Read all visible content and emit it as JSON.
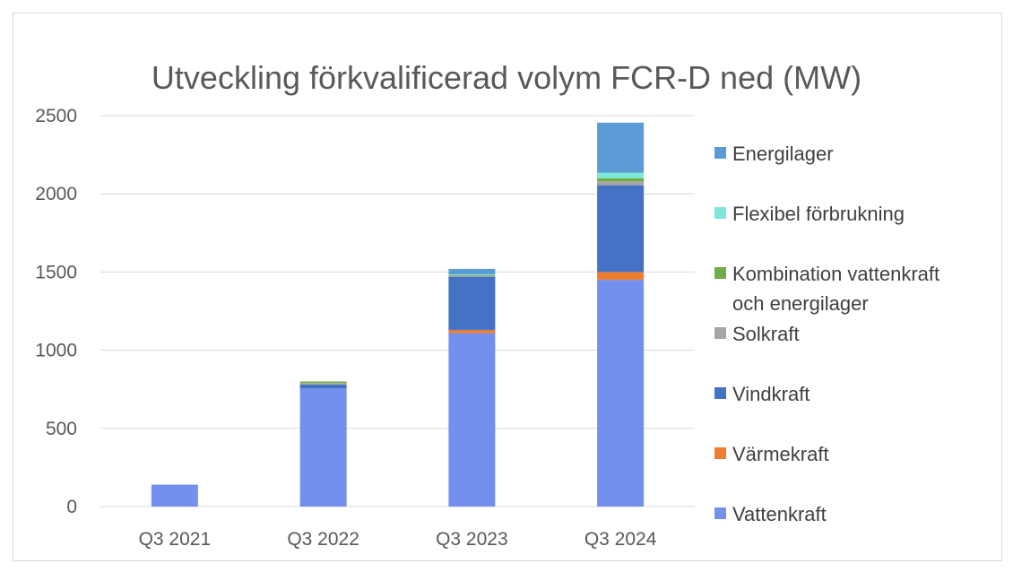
{
  "chart_data": {
    "type": "bar",
    "stacked": true,
    "title": "Utveckling förkvalificerad volym FCR-D ned (MW)",
    "xlabel": "",
    "ylabel": "",
    "ylim": [
      0,
      2500
    ],
    "yticks": [
      0,
      500,
      1000,
      1500,
      2000,
      2500
    ],
    "grid": true,
    "legend_position": "right",
    "categories": [
      "Q3 2021",
      "Q3 2022",
      "Q3 2023",
      "Q3 2024"
    ],
    "series": [
      {
        "name": "Vattenkraft",
        "color": "#7390ee",
        "values": [
          140,
          755,
          1110,
          1450
        ]
      },
      {
        "name": "Värmekraft",
        "color": "#ed7d31",
        "values": [
          0,
          0,
          20,
          50
        ]
      },
      {
        "name": "Vindkraft",
        "color": "#4472c4",
        "values": [
          0,
          25,
          340,
          555
        ]
      },
      {
        "name": "Solkraft",
        "color": "#a5a5a5",
        "values": [
          0,
          10,
          5,
          25
        ]
      },
      {
        "name": "Kombination vattenkraft och energilager",
        "color": "#70ad47",
        "values": [
          0,
          10,
          5,
          20
        ]
      },
      {
        "name": "Flexibel förbrukning",
        "color": "#7ee8d8",
        "values": [
          0,
          0,
          5,
          35
        ]
      },
      {
        "name": "Energilager",
        "color": "#5b9bd5",
        "values": [
          0,
          0,
          35,
          320
        ]
      }
    ]
  }
}
